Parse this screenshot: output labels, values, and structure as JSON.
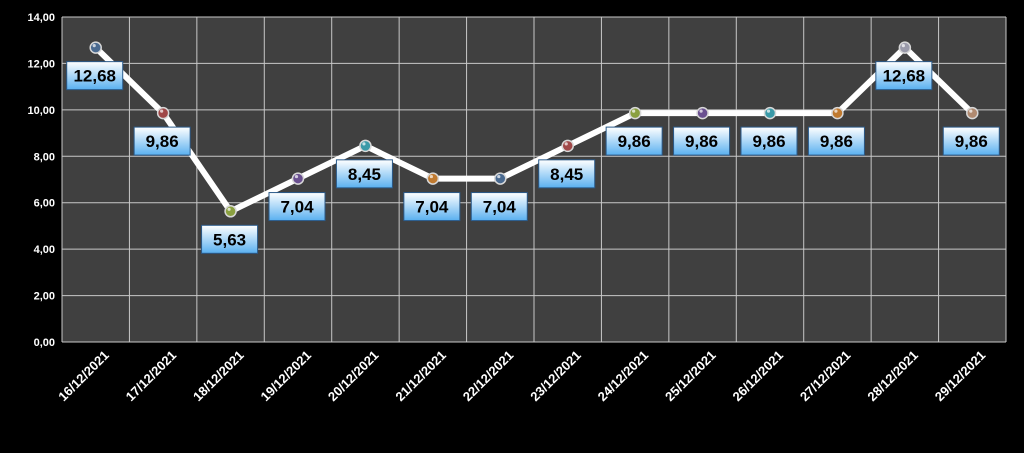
{
  "chart_data": {
    "type": "line",
    "title": "",
    "xlabel": "",
    "ylabel": "",
    "ylim": [
      0,
      14
    ],
    "y_ticks": [
      "0,00",
      "2,00",
      "4,00",
      "6,00",
      "8,00",
      "10,00",
      "12,00",
      "14,00"
    ],
    "y_tick_values": [
      0,
      2,
      4,
      6,
      8,
      10,
      12,
      14
    ],
    "categories": [
      "16/12/2021",
      "17/12/2021",
      "18/12/2021",
      "19/12/2021",
      "20/12/2021",
      "21/12/2021",
      "22/12/2021",
      "23/12/2021",
      "24/12/2021",
      "25/12/2021",
      "26/12/2021",
      "27/12/2021",
      "28/12/2021",
      "29/12/2021"
    ],
    "series": [
      {
        "values": [
          12.68,
          9.86,
          5.63,
          7.04,
          8.45,
          7.04,
          7.04,
          8.45,
          9.86,
          9.86,
          9.86,
          9.86,
          12.68,
          9.86
        ],
        "labels": [
          "12,68",
          "9,86",
          "5,63",
          "7,04",
          "8,45",
          "7,04",
          "7,04",
          "8,45",
          "9,86",
          "9,86",
          "9,86",
          "9,86",
          "12,68",
          "9,86"
        ],
        "line_color": "#ffffff",
        "marker_colors": [
          "#4a6a90",
          "#a04848",
          "#8aa040",
          "#6a5090",
          "#3a9aa8",
          "#c07a30",
          "#4a6a90",
          "#a04848",
          "#8aa040",
          "#6a5090",
          "#3a9aa8",
          "#c07a30",
          "#9a9aaa",
          "#b08a70"
        ]
      }
    ],
    "grid": true,
    "legend": "none",
    "colors": {
      "background": "#000000",
      "plot_area": "#404040",
      "gridline": "#c8c8c8",
      "axis_text": "#ffffff",
      "label_fill_top": "#ffffff",
      "label_fill_bottom": "#5ab0f0",
      "label_border": "#2a5a8a",
      "label_text": "#000000"
    }
  }
}
